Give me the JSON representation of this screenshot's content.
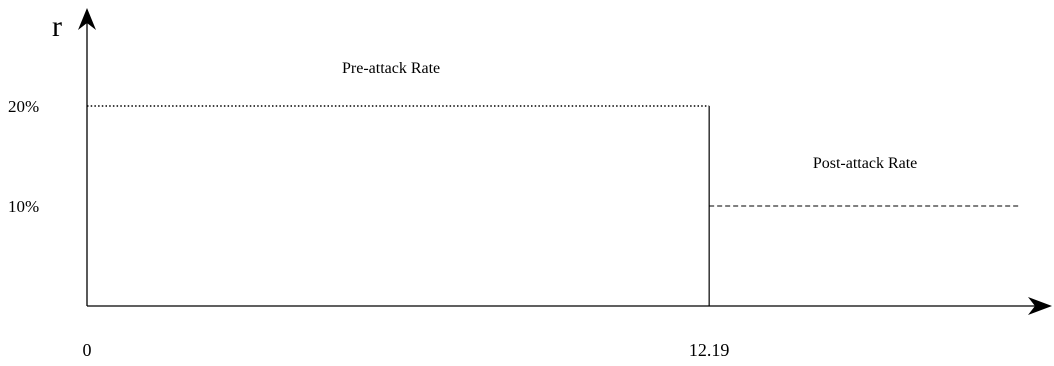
{
  "chart_data": {
    "type": "line",
    "ylabel": "r",
    "xlabel": "",
    "grid": false,
    "x_ticks": [
      {
        "value": 0,
        "label": "0"
      },
      {
        "value": 12.19,
        "label": "12.19"
      }
    ],
    "y_ticks": [
      {
        "value": 20,
        "label": "20%"
      },
      {
        "value": 10,
        "label": "10%"
      }
    ],
    "xlim": [
      0,
      18.3
    ],
    "ylim": [
      0,
      27
    ],
    "series": [
      {
        "name": "Pre-attack Rate",
        "line_style": "dotted",
        "x": [
          0,
          12.19
        ],
        "y": [
          20,
          20
        ]
      },
      {
        "name": "Post-attack Rate",
        "line_style": "dashed",
        "x": [
          12.19,
          18.3
        ],
        "y": [
          10,
          10
        ]
      }
    ]
  },
  "colors": {
    "axis": "#000000",
    "text": "#000000",
    "background": "#ffffff"
  }
}
